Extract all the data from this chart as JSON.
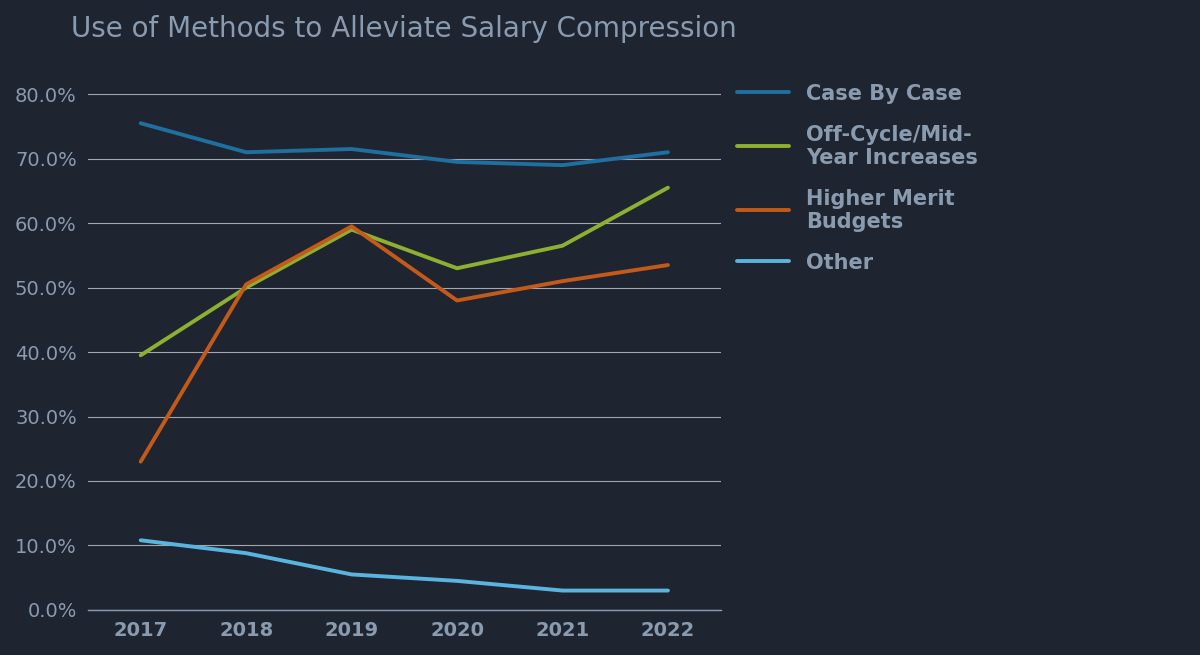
{
  "title": "Use of Methods to Alleviate Salary Compression",
  "years": [
    2017,
    2018,
    2019,
    2020,
    2021,
    2022
  ],
  "series": [
    {
      "label": "Case By Case",
      "color": "#1f6fa0",
      "values": [
        0.755,
        0.71,
        0.715,
        0.695,
        0.69,
        0.71
      ]
    },
    {
      "label": "Off-Cycle/Mid-\nYear Increases",
      "color": "#8db030",
      "values": [
        0.395,
        0.5,
        0.59,
        0.53,
        0.565,
        0.655
      ]
    },
    {
      "label": "Higher Merit\nBudgets",
      "color": "#c45a1a",
      "values": [
        0.23,
        0.505,
        0.595,
        0.48,
        0.51,
        0.535
      ]
    },
    {
      "label": "Other",
      "color": "#5ab4e0",
      "values": [
        0.108,
        0.088,
        0.055,
        0.045,
        0.03,
        0.03
      ]
    }
  ],
  "ylim": [
    0.0,
    0.85
  ],
  "yticks": [
    0.0,
    0.1,
    0.2,
    0.3,
    0.4,
    0.5,
    0.6,
    0.7,
    0.8
  ],
  "background_color": "#1e2530",
  "plot_bg_color": "#1e2530",
  "grid_color": "#ffffff",
  "text_color": "#8a9bb0",
  "title_color": "#8a9bb0",
  "title_fontsize": 20,
  "tick_fontsize": 14,
  "legend_fontsize": 15,
  "line_width": 2.8
}
